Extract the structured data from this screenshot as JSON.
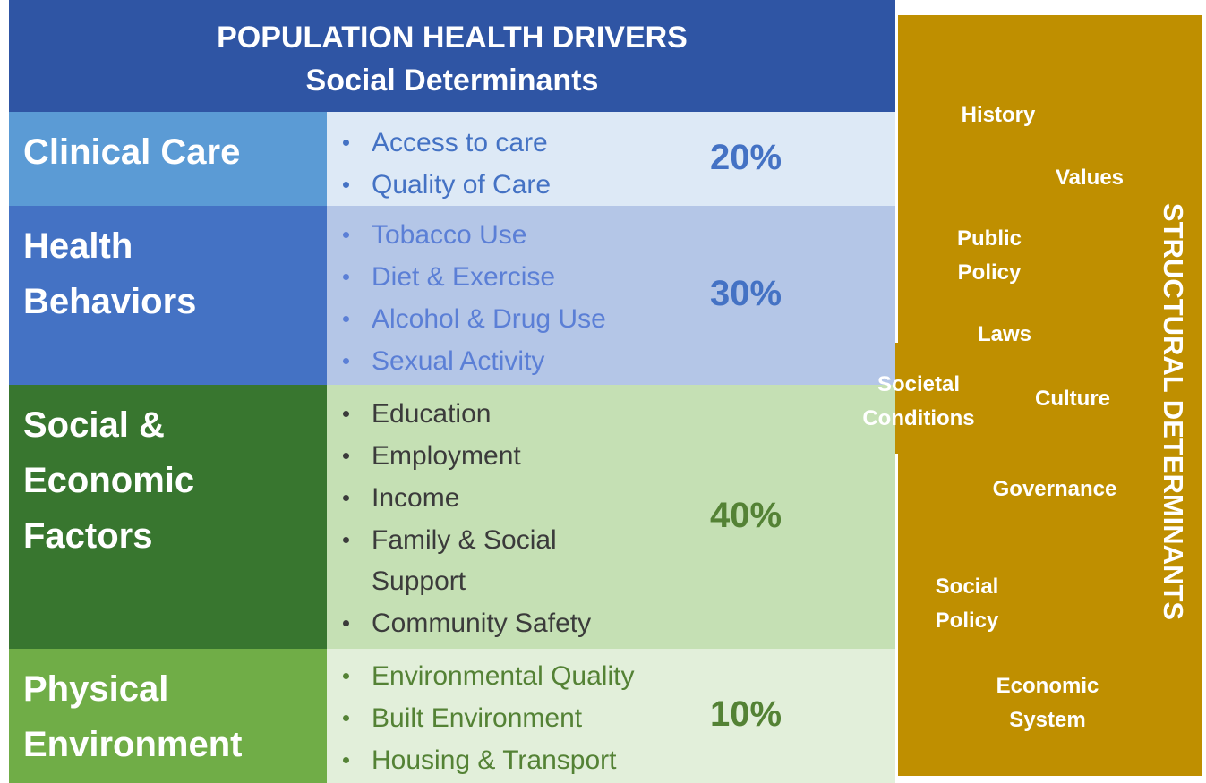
{
  "header": {
    "title": "POPULATION HEALTH DRIVERS",
    "subtitle": "Social Determinants"
  },
  "rows": [
    {
      "label": [
        "Clinical Care"
      ],
      "items": [
        [
          "Access to care"
        ],
        [
          "Quality of Care"
        ]
      ],
      "percent": "20%"
    },
    {
      "label": [
        "Health",
        "Behaviors"
      ],
      "items": [
        [
          "Tobacco Use"
        ],
        [
          "Diet & Exercise"
        ],
        [
          "Alcohol & Drug Use"
        ],
        [
          "Sexual Activity"
        ]
      ],
      "percent": "30%"
    },
    {
      "label": [
        "Social &",
        "Economic",
        "Factors"
      ],
      "items": [
        [
          "Education"
        ],
        [
          "Employment"
        ],
        [
          "Income"
        ],
        [
          "Family & Social",
          "Support"
        ],
        [
          "Community Safety"
        ]
      ],
      "percent": "40%"
    },
    {
      "label": [
        "Physical",
        "Environment"
      ],
      "items": [
        [
          "Environmental Quality"
        ],
        [
          "Built Environment"
        ],
        [
          "Housing & Transport"
        ]
      ],
      "percent": "10%"
    }
  ],
  "structural": {
    "title": "STRUCTURAL DETERMINANTS",
    "words": [
      [
        "History"
      ],
      [
        "Values"
      ],
      [
        "Public",
        "Policy"
      ],
      [
        "Laws"
      ],
      [
        "Societal",
        "Conditions"
      ],
      [
        "Culture"
      ],
      [
        "Governance"
      ],
      [
        "Social",
        "Policy"
      ],
      [
        "Economic",
        "System"
      ]
    ]
  }
}
